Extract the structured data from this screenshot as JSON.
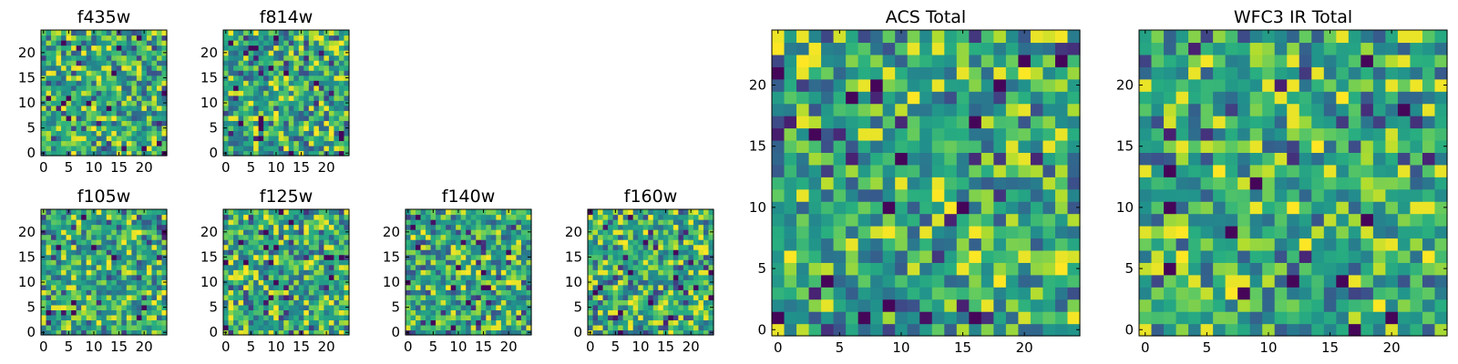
{
  "chart_data": [
    {
      "type": "heatmap",
      "title": "f435w",
      "rows": 25,
      "cols": 25,
      "xticks": [
        "0",
        "5",
        "10",
        "15",
        "20"
      ],
      "yticks": [
        "0",
        "5",
        "10",
        "15",
        "20"
      ],
      "seed": 11
    },
    {
      "type": "heatmap",
      "title": "f814w",
      "rows": 25,
      "cols": 25,
      "xticks": [
        "0",
        "5",
        "10",
        "15",
        "20"
      ],
      "yticks": [
        "0",
        "5",
        "10",
        "15",
        "20"
      ],
      "seed": 23
    },
    {
      "type": "heatmap",
      "title": "f105w",
      "rows": 25,
      "cols": 25,
      "xticks": [
        "0",
        "5",
        "10",
        "15",
        "20"
      ],
      "yticks": [
        "0",
        "5",
        "10",
        "15",
        "20"
      ],
      "seed": 37
    },
    {
      "type": "heatmap",
      "title": "f125w",
      "rows": 25,
      "cols": 25,
      "xticks": [
        "0",
        "5",
        "10",
        "15",
        "20"
      ],
      "yticks": [
        "0",
        "5",
        "10",
        "15",
        "20"
      ],
      "seed": 41
    },
    {
      "type": "heatmap",
      "title": "f140w",
      "rows": 25,
      "cols": 25,
      "xticks": [
        "0",
        "5",
        "10",
        "15",
        "20"
      ],
      "yticks": [
        "0",
        "5",
        "10",
        "15",
        "20"
      ],
      "seed": 53
    },
    {
      "type": "heatmap",
      "title": "f160w",
      "rows": 25,
      "cols": 25,
      "xticks": [
        "0",
        "5",
        "10",
        "15",
        "20"
      ],
      "yticks": [
        "0",
        "5",
        "10",
        "15",
        "20"
      ],
      "seed": 67
    },
    {
      "type": "heatmap",
      "title": "ACS Total",
      "rows": 25,
      "cols": 25,
      "xticks": [
        "0",
        "5",
        "10",
        "15",
        "20"
      ],
      "yticks": [
        "0",
        "5",
        "10",
        "15",
        "20"
      ],
      "seed": 79
    },
    {
      "type": "heatmap",
      "title": "WFC3 IR Total",
      "rows": 25,
      "cols": 25,
      "xticks": [
        "0",
        "5",
        "10",
        "15",
        "20"
      ],
      "yticks": [
        "0",
        "5",
        "10",
        "15",
        "20"
      ],
      "seed": 97
    }
  ],
  "colormap": "viridis",
  "colors": {
    "low": "#440154",
    "mid": "#21918c",
    "high": "#fde725"
  }
}
